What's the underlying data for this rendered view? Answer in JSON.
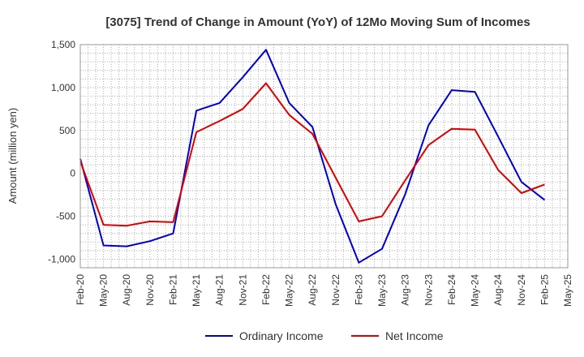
{
  "chart_data": {
    "type": "line",
    "title": "[3075]  Trend of Change in Amount (YoY) of 12Mo Moving Sum of Incomes",
    "ylabel": "Amount (million yen)",
    "xlabel": "",
    "ylim": [
      -1100,
      1500
    ],
    "yticks": [
      1500,
      1000,
      500,
      0,
      -500,
      -1000
    ],
    "ytick_labels": [
      "1,500",
      "1,000",
      "500",
      "0",
      "-500",
      "-1,000"
    ],
    "x": [
      "Feb-20",
      "May-20",
      "Aug-20",
      "Nov-20",
      "Feb-21",
      "May-21",
      "Aug-21",
      "Nov-21",
      "Feb-22",
      "May-22",
      "Aug-22",
      "Nov-22",
      "Feb-23",
      "May-23",
      "Aug-23",
      "Nov-23",
      "Feb-24",
      "May-24",
      "Aug-24",
      "Nov-24",
      "Feb-25",
      "May-25"
    ],
    "grid": true,
    "legend": "bottom",
    "series": [
      {
        "name": "Ordinary Income",
        "color": "#0000cc",
        "values": [
          170,
          -840,
          -850,
          -790,
          -700,
          730,
          820,
          1120,
          1440,
          820,
          540,
          -360,
          -1040,
          -880,
          -240,
          560,
          970,
          950,
          430,
          -100,
          -310,
          null
        ]
      },
      {
        "name": "Net Income",
        "color": "#dd0000",
        "values": [
          140,
          -600,
          -610,
          -560,
          -570,
          480,
          610,
          750,
          1050,
          680,
          460,
          -50,
          -560,
          -500,
          -80,
          330,
          520,
          510,
          40,
          -230,
          -130,
          null
        ]
      }
    ]
  }
}
